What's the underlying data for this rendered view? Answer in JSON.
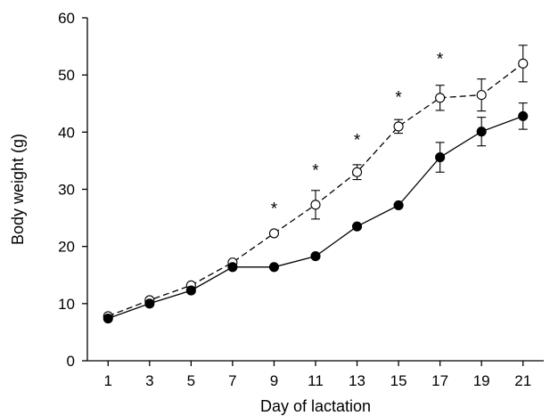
{
  "chart_data": {
    "type": "line",
    "title": "",
    "xlabel": "Day of lactation",
    "ylabel": "Body weight (g)",
    "x": [
      1,
      3,
      5,
      7,
      9,
      11,
      13,
      15,
      17,
      19,
      21
    ],
    "x_ticks": [
      "1",
      "3",
      "5",
      "7",
      "9",
      "11",
      "13",
      "15",
      "17",
      "19",
      "21"
    ],
    "ylim": [
      0,
      60
    ],
    "y_ticks": [
      "0",
      "10",
      "20",
      "30",
      "40",
      "50",
      "60"
    ],
    "grid": false,
    "legend": "none",
    "series": [
      {
        "marker": "open-circle",
        "line_style": "dashed",
        "color": "#000000",
        "values": [
          7.8,
          10.6,
          13.2,
          17.2,
          22.3,
          27.3,
          33.0,
          41.0,
          46.0,
          46.5,
          52.0
        ],
        "error": [
          0,
          0,
          0,
          0,
          0,
          2.5,
          1.3,
          1.2,
          2.2,
          2.8,
          3.2
        ]
      },
      {
        "marker": "filled-circle",
        "line_style": "solid",
        "color": "#000000",
        "values": [
          7.4,
          10.0,
          12.3,
          16.4,
          16.4,
          18.3,
          23.5,
          27.2,
          35.6,
          40.1,
          42.8
        ],
        "error": [
          0,
          0,
          0,
          0,
          0,
          0,
          0,
          0,
          2.6,
          2.5,
          2.3
        ]
      }
    ],
    "annotations": [
      {
        "text": "*",
        "x": 9,
        "y": 27.5
      },
      {
        "text": "*",
        "x": 11,
        "y": 34.2
      },
      {
        "text": "*",
        "x": 13,
        "y": 39.5
      },
      {
        "text": "*",
        "x": 15,
        "y": 47.0
      },
      {
        "text": "*",
        "x": 17,
        "y": 53.7
      }
    ]
  }
}
